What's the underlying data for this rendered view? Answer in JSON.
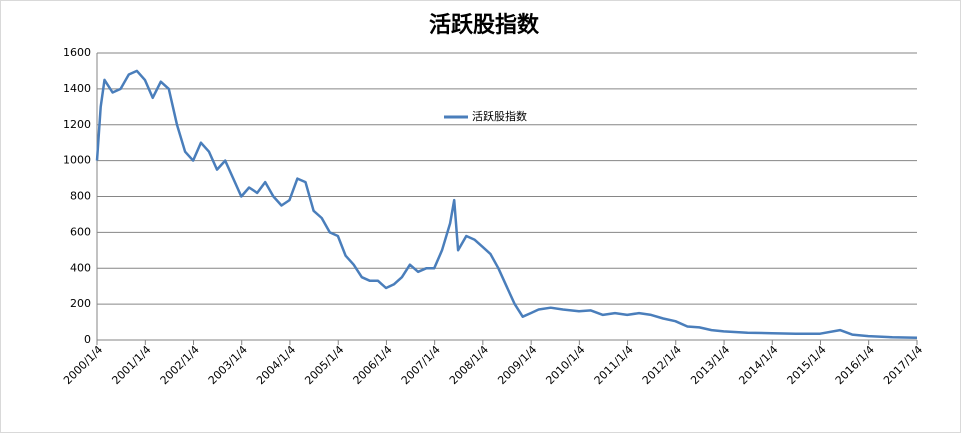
{
  "chart_data": {
    "type": "line",
    "title": "活跃股指数",
    "series": [
      {
        "name": "活跃股指数",
        "color": "#4a7ebb",
        "x": [
          "2000/1/4",
          "2000/2/1",
          "2000/3/1",
          "2000/5/1",
          "2000/7/1",
          "2000/9/1",
          "2000/11/1",
          "2001/1/1",
          "2001/3/1",
          "2001/5/1",
          "2001/7/1",
          "2001/9/1",
          "2001/11/1",
          "2002/1/1",
          "2002/3/1",
          "2002/5/1",
          "2002/7/1",
          "2002/9/1",
          "2002/11/1",
          "2003/1/1",
          "2003/3/1",
          "2003/5/1",
          "2003/7/1",
          "2003/9/1",
          "2003/11/1",
          "2004/1/1",
          "2004/3/1",
          "2004/5/1",
          "2004/7/1",
          "2004/9/1",
          "2004/11/1",
          "2005/1/1",
          "2005/3/1",
          "2005/5/1",
          "2005/7/1",
          "2005/9/1",
          "2005/11/1",
          "2006/1/1",
          "2006/3/1",
          "2006/5/1",
          "2006/7/1",
          "2006/9/1",
          "2006/11/1",
          "2007/1/1",
          "2007/3/1",
          "2007/5/1",
          "2007/6/1",
          "2007/7/1",
          "2007/9/1",
          "2007/11/1",
          "2008/1/1",
          "2008/3/1",
          "2008/5/1",
          "2008/7/1",
          "2008/9/1",
          "2008/11/1",
          "2009/1/1",
          "2009/3/1",
          "2009/6/1",
          "2009/9/1",
          "2010/1/1",
          "2010/4/1",
          "2010/7/1",
          "2010/10/1",
          "2011/1/1",
          "2011/4/1",
          "2011/7/1",
          "2011/10/1",
          "2012/1/1",
          "2012/4/1",
          "2012/7/1",
          "2012/10/1",
          "2013/1/1",
          "2013/7/1",
          "2014/1/1",
          "2014/7/1",
          "2015/1/1",
          "2015/6/1",
          "2015/9/1",
          "2016/1/1",
          "2016/7/1",
          "2017/1/4"
        ],
        "values": [
          1000,
          1300,
          1450,
          1380,
          1400,
          1480,
          1500,
          1450,
          1350,
          1440,
          1400,
          1200,
          1050,
          1000,
          1100,
          1050,
          950,
          1000,
          900,
          800,
          850,
          820,
          880,
          800,
          750,
          780,
          900,
          880,
          720,
          680,
          600,
          580,
          470,
          420,
          350,
          330,
          330,
          290,
          310,
          350,
          420,
          380,
          400,
          400,
          500,
          650,
          780,
          500,
          580,
          560,
          520,
          480,
          400,
          300,
          200,
          130,
          150,
          170,
          180,
          170,
          160,
          165,
          140,
          150,
          140,
          150,
          140,
          120,
          105,
          75,
          70,
          55,
          48,
          40,
          38,
          35,
          35,
          55,
          30,
          22,
          15,
          12
        ]
      }
    ],
    "xlim": [
      "2000/1/4",
      "2017/1/4"
    ],
    "xticks": [
      "2000/1/4",
      "2001/1/4",
      "2002/1/4",
      "2003/1/4",
      "2004/1/4",
      "2005/1/4",
      "2006/1/4",
      "2007/1/4",
      "2008/1/4",
      "2009/1/4",
      "2010/1/4",
      "2011/1/4",
      "2012/1/4",
      "2013/1/4",
      "2014/1/4",
      "2015/1/4",
      "2016/1/4",
      "2017/1/4"
    ],
    "ylim": [
      0,
      1600
    ],
    "yticks": [
      0,
      200,
      400,
      600,
      800,
      1000,
      1200,
      1400,
      1600
    ],
    "grid": true
  }
}
